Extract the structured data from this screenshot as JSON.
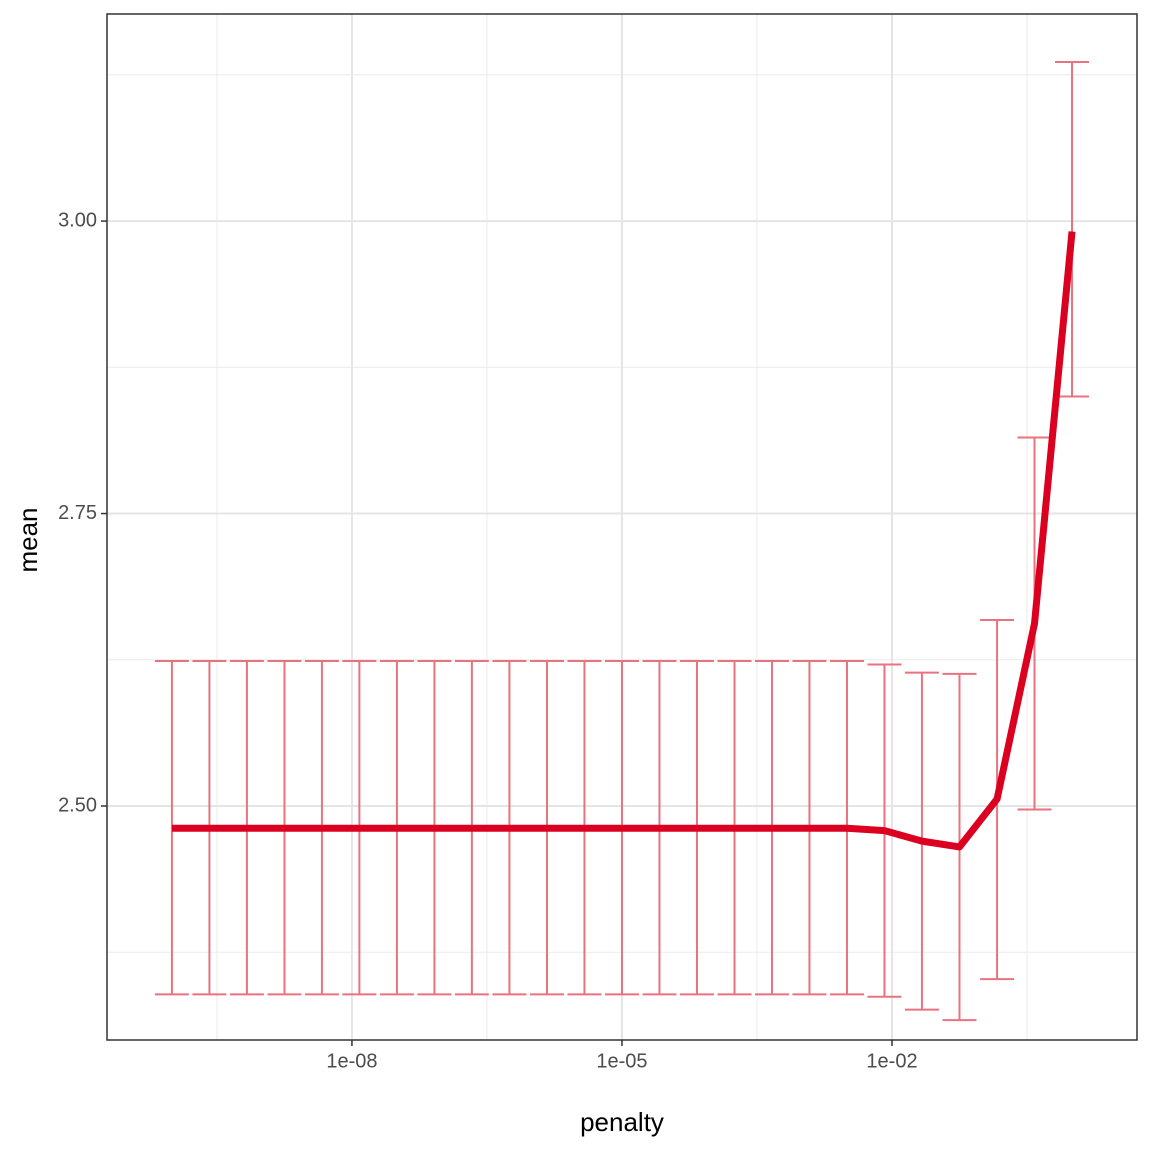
{
  "chart_data": {
    "type": "line",
    "x_label": "penalty",
    "y_label": "mean",
    "x_scale": "log",
    "x": [
      1e-10,
      2.61e-10,
      6.81e-10,
      1.78e-09,
      4.64e-09,
      1.21e-08,
      3.16e-08,
      8.25e-08,
      2.15e-07,
      5.62e-07,
      1.47e-06,
      3.83e-06,
      1e-05,
      2.61e-05,
      6.81e-05,
      0.000178,
      0.000464,
      0.00121,
      0.00316,
      0.00825,
      0.0215,
      0.0562,
      0.147,
      0.383,
      1
    ],
    "series": [
      {
        "color": "#dc0020",
        "error_color": "#e8727f",
        "values": [
          2.481,
          2.481,
          2.481,
          2.481,
          2.481,
          2.481,
          2.481,
          2.481,
          2.481,
          2.481,
          2.481,
          2.481,
          2.481,
          2.481,
          2.481,
          2.481,
          2.481,
          2.481,
          2.481,
          2.479,
          2.47,
          2.465,
          2.506,
          2.656,
          2.991
        ],
        "lower": [
          2.339,
          2.339,
          2.339,
          2.339,
          2.339,
          2.339,
          2.339,
          2.339,
          2.339,
          2.339,
          2.339,
          2.339,
          2.339,
          2.339,
          2.339,
          2.339,
          2.339,
          2.339,
          2.339,
          2.337,
          2.326,
          2.317,
          2.352,
          2.497,
          2.85
        ],
        "upper": [
          2.624,
          2.624,
          2.624,
          2.624,
          2.624,
          2.624,
          2.624,
          2.624,
          2.624,
          2.624,
          2.624,
          2.624,
          2.624,
          2.624,
          2.624,
          2.624,
          2.624,
          2.624,
          2.624,
          2.621,
          2.614,
          2.613,
          2.659,
          2.815,
          3.136
        ]
      }
    ],
    "xlim": [
      1.9e-11,
      5.27
    ],
    "ylim": [
      2.3,
      3.177
    ],
    "xticks": [
      {
        "value": 1e-08,
        "label": "1e-08"
      },
      {
        "value": 1e-05,
        "label": "1e-05"
      },
      {
        "value": 0.01,
        "label": "1e-02"
      }
    ],
    "yticks": [
      {
        "value": 2.5,
        "label": "2.50"
      },
      2.75,
      {
        "value": 3,
        "label": "3.00"
      }
    ],
    "grid": true
  }
}
